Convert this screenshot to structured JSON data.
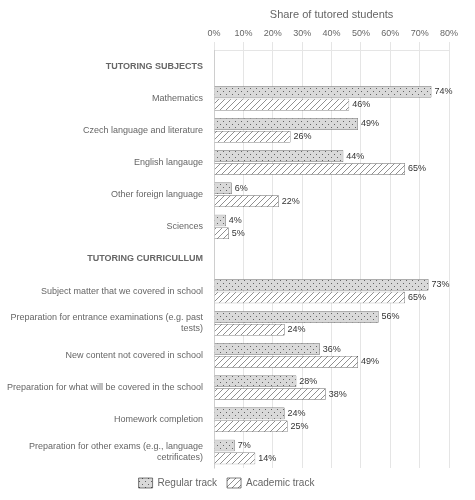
{
  "chart_data": {
    "type": "bar",
    "orientation": "horizontal",
    "xlabel": "Share of tutored students",
    "categories": [
      "TUTORING SUBJECTS",
      "Mathematics",
      "Czech language and literature",
      "English langauge",
      "Other foreign language",
      "Sciences",
      "TUTORING CURRICULLUM",
      "Subject matter that we covered in school",
      "Preparation for entrance examinations (e.g. past\ntests)",
      "New content not covered in school",
      "Preparation for what will be covered in the school",
      "Homework completion",
      "Preparation for other exams (e.g., language\ncetrificates)"
    ],
    "series": [
      {
        "name": "Regular track",
        "color": "#d9d9d9",
        "values": [
          null,
          74,
          49,
          44,
          6,
          4,
          null,
          73,
          56,
          36,
          28,
          24,
          7
        ],
        "value_labels": [
          null,
          "74%",
          "49%",
          "44%",
          "6%",
          "4%",
          null,
          "73%",
          "56%",
          "36%",
          "28%",
          "24%",
          "7%"
        ]
      },
      {
        "name": "Academic track",
        "color": "#ffffff",
        "values": [
          null,
          46,
          26,
          65,
          22,
          5,
          null,
          65,
          24,
          49,
          38,
          25,
          14
        ],
        "value_labels": [
          null,
          "46%",
          "26%",
          "65%",
          "22%",
          "5%",
          null,
          "65%",
          "24%",
          "49%",
          "38%",
          "25%",
          "14%"
        ]
      }
    ],
    "xlim": [
      0,
      80
    ],
    "xticks": [
      {
        "value": 0,
        "label": "0%"
      },
      {
        "value": 10,
        "label": "10%"
      },
      {
        "value": 20,
        "label": "20%"
      },
      {
        "value": 30,
        "label": "30%"
      },
      {
        "value": 40,
        "label": "40%"
      },
      {
        "value": 50,
        "label": "50%"
      },
      {
        "value": 60,
        "label": "60%"
      },
      {
        "value": 70,
        "label": "70%"
      },
      {
        "value": 80,
        "label": "80%"
      }
    ],
    "grid": true,
    "legend": "bottom",
    "data_labels": true
  }
}
